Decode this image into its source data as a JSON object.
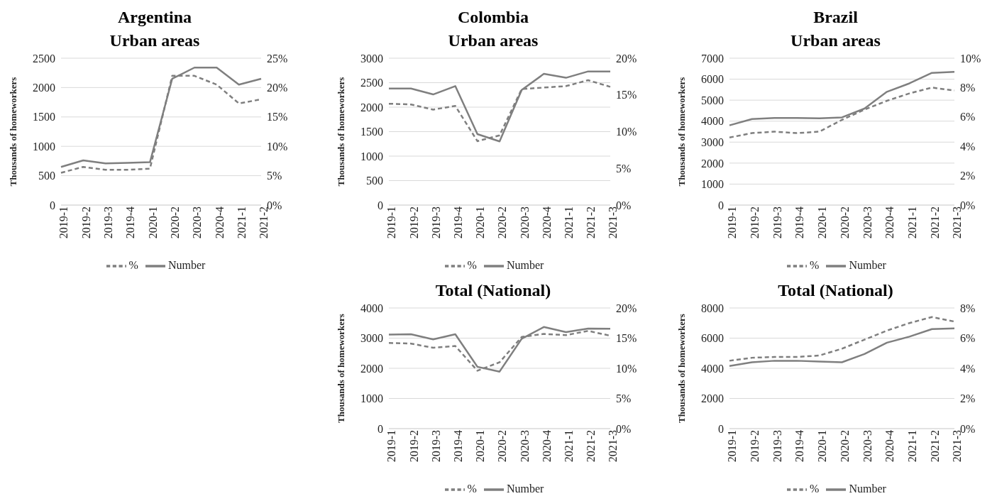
{
  "chart_data": [
    {
      "type": "line",
      "title": "Argentina",
      "subtitle": "Urban areas",
      "ylabel": "Thousands of homeworkers",
      "categories": [
        "2019-1",
        "2019-2",
        "2019-3",
        "2019-4",
        "2020-1",
        "2020-2",
        "2020-3",
        "2020-4",
        "2021-1",
        "2021-2"
      ],
      "grid": "y",
      "legend": "bottom",
      "marker": "none",
      "ylim": [
        0,
        2500
      ],
      "yticks": [
        0,
        500,
        1000,
        1500,
        2000,
        2500
      ],
      "y2lim": [
        0,
        25
      ],
      "y2ticks": [
        {
          "value": 0,
          "label": "0%"
        },
        {
          "value": 5,
          "label": "5%"
        },
        {
          "value": 10,
          "label": "10%"
        },
        {
          "value": 15,
          "label": "15%"
        },
        {
          "value": 20,
          "label": "20%"
        },
        {
          "value": 25,
          "label": "25%"
        }
      ],
      "series": [
        {
          "name": "Number",
          "color": "#7f7f7f",
          "line_style": "solid",
          "values": [
            650,
            760,
            710,
            720,
            730,
            2150,
            2340,
            2340,
            2050,
            2150
          ]
        },
        {
          "name": "%",
          "color": "#7f7f7f",
          "line_style": "dashed",
          "axis": "y2",
          "values": [
            5.5,
            6.5,
            6,
            6,
            6.2,
            22,
            22,
            20.5,
            17.3,
            18
          ]
        }
      ]
    },
    {
      "type": "line",
      "title": "Colombia",
      "subtitle": "Urban areas",
      "ylabel": "Thousands of homeworkers",
      "categories": [
        "2019-1",
        "2019-2",
        "2019-3",
        "2019-4",
        "2020-1",
        "2020-2",
        "2020-3",
        "2020-4",
        "2021-1",
        "2021-2",
        "2021-3"
      ],
      "grid": "y",
      "legend": "bottom",
      "marker": "none",
      "ylim": [
        0,
        3000
      ],
      "yticks": [
        0,
        500,
        1000,
        1500,
        2000,
        2500,
        3000
      ],
      "y2lim": [
        0,
        20
      ],
      "y2ticks": [
        {
          "value": 0,
          "label": "0%"
        },
        {
          "value": 5,
          "label": "5%"
        },
        {
          "value": 10,
          "label": "10%"
        },
        {
          "value": 15,
          "label": "15%"
        },
        {
          "value": 20,
          "label": "20%"
        }
      ],
      "series": [
        {
          "name": "Number",
          "color": "#7f7f7f",
          "line_style": "solid",
          "values": [
            2380,
            2380,
            2260,
            2430,
            1450,
            1300,
            2350,
            2680,
            2600,
            2730,
            2730
          ]
        },
        {
          "name": "%",
          "color": "#7f7f7f",
          "line_style": "dashed",
          "axis": "y2",
          "values": [
            13.8,
            13.7,
            13,
            13.5,
            8.7,
            9.5,
            15.8,
            16,
            16.2,
            17,
            16.1
          ]
        }
      ]
    },
    {
      "type": "line",
      "title": "Brazil",
      "subtitle": "Urban areas",
      "ylabel": "Thousands of homeworkers",
      "categories": [
        "2019-1",
        "2019-2",
        "2019-3",
        "2019-4",
        "2020-1",
        "2020-2",
        "2020-3",
        "2020-4",
        "2021-1",
        "2021-2",
        "2021-3"
      ],
      "grid": "y",
      "legend": "bottom",
      "marker": "none",
      "ylim": [
        0,
        7000
      ],
      "yticks": [
        0,
        1000,
        2000,
        3000,
        4000,
        5000,
        6000,
        7000
      ],
      "y2lim": [
        0,
        10
      ],
      "y2ticks": [
        {
          "value": 0,
          "label": "0%"
        },
        {
          "value": 2,
          "label": "2%"
        },
        {
          "value": 4,
          "label": "4%"
        },
        {
          "value": 6,
          "label": "6%"
        },
        {
          "value": 8,
          "label": "8%"
        },
        {
          "value": 10,
          "label": "10%"
        }
      ],
      "series": [
        {
          "name": "Number",
          "color": "#7f7f7f",
          "line_style": "solid",
          "values": [
            3800,
            4100,
            4150,
            4150,
            4130,
            4180,
            4600,
            5400,
            5800,
            6300,
            6350
          ]
        },
        {
          "name": "%",
          "color": "#7f7f7f",
          "line_style": "dashed",
          "axis": "y2",
          "values": [
            4.6,
            4.9,
            5.0,
            4.9,
            5.0,
            5.8,
            6.5,
            7.1,
            7.6,
            8.0,
            7.8
          ]
        }
      ]
    },
    {
      "type": "line",
      "title": "Total (National)",
      "ylabel": "Thousands of homeworkers",
      "categories": [
        "2019-1",
        "2019-2",
        "2019-3",
        "2019-4",
        "2020-1",
        "2020-2",
        "2020-3",
        "2020-4",
        "2021-1",
        "2021-2",
        "2021-3"
      ],
      "grid": "y",
      "legend": "bottom",
      "marker": "none",
      "ylim": [
        0,
        4000
      ],
      "yticks": [
        0,
        1000,
        2000,
        3000,
        4000
      ],
      "y2lim": [
        0,
        20
      ],
      "y2ticks": [
        {
          "value": 0,
          "label": "0%"
        },
        {
          "value": 5,
          "label": "5%"
        },
        {
          "value": 10,
          "label": "10%"
        },
        {
          "value": 15,
          "label": "15%"
        },
        {
          "value": 20,
          "label": "20%"
        }
      ],
      "series": [
        {
          "name": "Number",
          "color": "#7f7f7f",
          "line_style": "solid",
          "values": [
            3120,
            3130,
            2960,
            3130,
            2050,
            1890,
            2980,
            3370,
            3200,
            3320,
            3310
          ]
        },
        {
          "name": "%",
          "color": "#7f7f7f",
          "line_style": "dashed",
          "axis": "y2",
          "values": [
            14.2,
            14.1,
            13.4,
            13.7,
            9.6,
            11,
            15.2,
            15.7,
            15.5,
            16.2,
            15.4
          ]
        }
      ]
    },
    {
      "type": "line",
      "title": "Total (National)",
      "ylabel": "Thousands of homeworkers",
      "categories": [
        "2019-1",
        "2019-2",
        "2019-3",
        "2019-4",
        "2020-1",
        "2020-2",
        "2020-3",
        "2020-4",
        "2021-1",
        "2021-2",
        "2021-3"
      ],
      "grid": "y",
      "legend": "bottom",
      "marker": "none",
      "ylim": [
        0,
        8000
      ],
      "yticks": [
        0,
        2000,
        4000,
        6000,
        8000
      ],
      "y2lim": [
        0,
        8
      ],
      "y2ticks": [
        {
          "value": 0,
          "label": "0%"
        },
        {
          "value": 2,
          "label": "2%"
        },
        {
          "value": 4,
          "label": "4%"
        },
        {
          "value": 6,
          "label": "6%"
        },
        {
          "value": 8,
          "label": "8%"
        }
      ],
      "series": [
        {
          "name": "Number",
          "color": "#7f7f7f",
          "line_style": "solid",
          "values": [
            4150,
            4400,
            4500,
            4500,
            4450,
            4400,
            4950,
            5700,
            6100,
            6600,
            6650
          ]
        },
        {
          "name": "%",
          "color": "#7f7f7f",
          "line_style": "dashed",
          "axis": "y2",
          "values": [
            4.5,
            4.7,
            4.75,
            4.75,
            4.85,
            5.3,
            5.9,
            6.5,
            7.0,
            7.4,
            7.1
          ]
        }
      ]
    }
  ]
}
